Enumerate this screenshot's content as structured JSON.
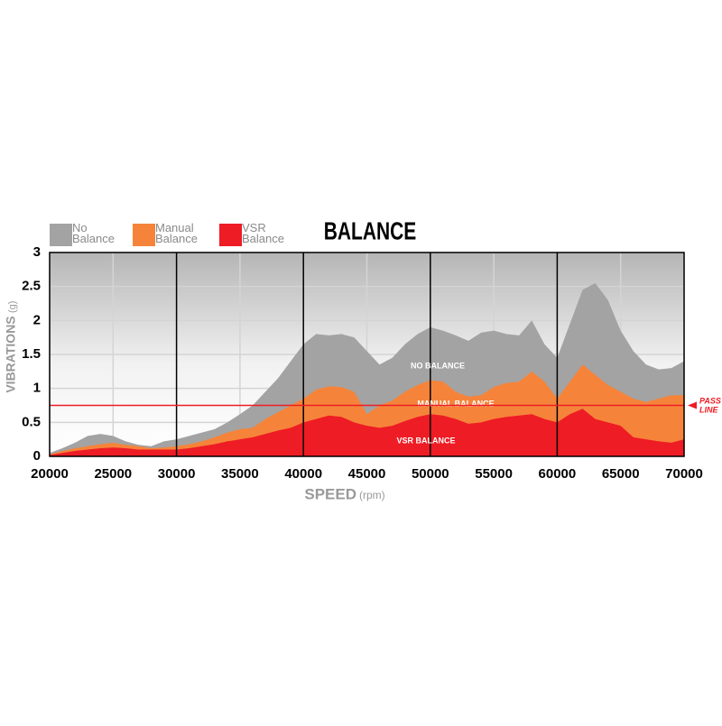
{
  "chart_data": {
    "type": "area",
    "title": "BALANCE",
    "x_label": "SPEED",
    "x_unit": "(rpm)",
    "y_label": "VIBRATIONS",
    "y_unit": "(g)",
    "x": [
      20000,
      21000,
      22000,
      23000,
      24000,
      25000,
      26000,
      27000,
      28000,
      29000,
      30000,
      31000,
      32000,
      33000,
      34000,
      35000,
      36000,
      37000,
      38000,
      39000,
      40000,
      41000,
      42000,
      43000,
      44000,
      45000,
      46000,
      47000,
      48000,
      49000,
      50000,
      51000,
      52000,
      53000,
      54000,
      55000,
      56000,
      57000,
      58000,
      59000,
      60000,
      61000,
      62000,
      63000,
      64000,
      65000,
      66000,
      67000,
      68000,
      69000,
      70000
    ],
    "series": [
      {
        "name": "No Balance",
        "color": "#a3a3a3",
        "values": [
          0.05,
          0.12,
          0.2,
          0.3,
          0.33,
          0.3,
          0.22,
          0.17,
          0.15,
          0.22,
          0.25,
          0.3,
          0.35,
          0.4,
          0.5,
          0.62,
          0.75,
          0.95,
          1.15,
          1.4,
          1.65,
          1.8,
          1.78,
          1.8,
          1.75,
          1.55,
          1.35,
          1.45,
          1.65,
          1.8,
          1.9,
          1.85,
          1.78,
          1.7,
          1.82,
          1.85,
          1.8,
          1.78,
          2.0,
          1.65,
          1.45,
          1.95,
          2.45,
          2.55,
          2.3,
          1.85,
          1.55,
          1.35,
          1.28,
          1.3,
          1.4
        ]
      },
      {
        "name": "Manual Balance",
        "color": "#f5843a",
        "values": [
          0.03,
          0.08,
          0.12,
          0.15,
          0.18,
          0.2,
          0.17,
          0.15,
          0.12,
          0.13,
          0.15,
          0.18,
          0.22,
          0.28,
          0.35,
          0.4,
          0.42,
          0.55,
          0.65,
          0.75,
          0.85,
          0.98,
          1.03,
          1.02,
          0.95,
          0.62,
          0.75,
          0.82,
          0.95,
          1.05,
          1.12,
          1.1,
          0.95,
          0.88,
          0.9,
          1.02,
          1.08,
          1.1,
          1.25,
          1.1,
          0.85,
          1.1,
          1.35,
          1.2,
          1.05,
          0.95,
          0.85,
          0.8,
          0.85,
          0.9,
          0.9
        ]
      },
      {
        "name": "VSR Balance",
        "color": "#ee1c24",
        "values": [
          0.02,
          0.05,
          0.08,
          0.1,
          0.12,
          0.13,
          0.12,
          0.1,
          0.1,
          0.1,
          0.1,
          0.12,
          0.15,
          0.18,
          0.22,
          0.25,
          0.28,
          0.33,
          0.38,
          0.42,
          0.5,
          0.55,
          0.6,
          0.58,
          0.5,
          0.45,
          0.42,
          0.45,
          0.52,
          0.58,
          0.62,
          0.6,
          0.55,
          0.48,
          0.5,
          0.55,
          0.58,
          0.6,
          0.62,
          0.55,
          0.5,
          0.62,
          0.7,
          0.55,
          0.5,
          0.45,
          0.28,
          0.25,
          0.22,
          0.2,
          0.25
        ]
      }
    ],
    "xlim": [
      20000,
      70000
    ],
    "xticks": [
      20000,
      25000,
      30000,
      35000,
      40000,
      45000,
      50000,
      55000,
      60000,
      65000,
      70000
    ],
    "ylim": [
      0,
      3
    ],
    "yticks": [
      0,
      0.5,
      1,
      1.5,
      2,
      2.5,
      3
    ],
    "grid": true,
    "annotations": [
      "NO BALANCE",
      "MANUAL BALANCE",
      "VSR BALANCE"
    ],
    "pass_line": {
      "value": 0.75,
      "label": "PASS LINE",
      "color": "#ee1c24"
    }
  }
}
